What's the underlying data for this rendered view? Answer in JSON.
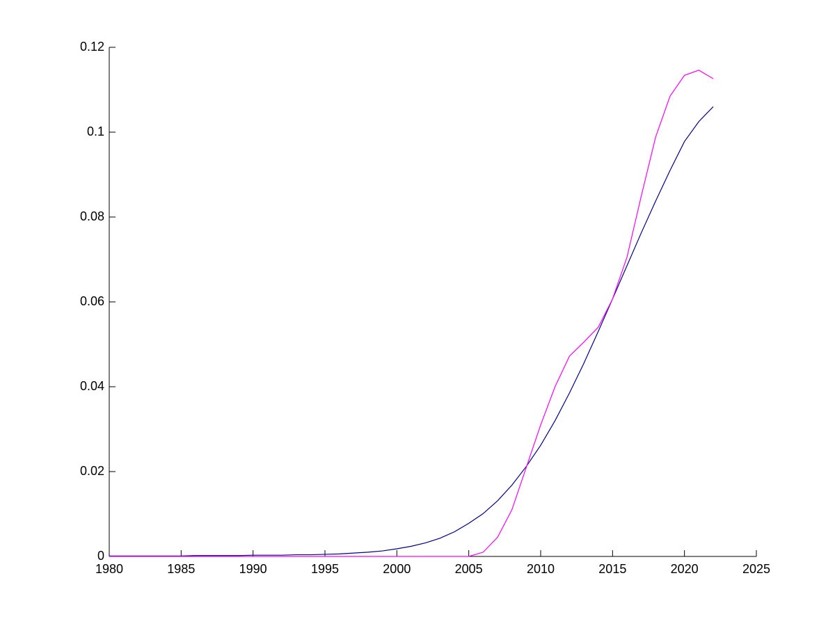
{
  "chart_data": {
    "type": "line",
    "x": [
      1980,
      1981,
      1982,
      1983,
      1984,
      1985,
      1986,
      1987,
      1988,
      1989,
      1990,
      1991,
      1992,
      1993,
      1994,
      1995,
      1996,
      1997,
      1998,
      1999,
      2000,
      2001,
      2002,
      2003,
      2004,
      2005,
      2006,
      2007,
      2008,
      2009,
      2010,
      2011,
      2012,
      2013,
      2014,
      2015,
      2016,
      2017,
      2018,
      2019,
      2020,
      2021,
      2022
    ],
    "series": [
      {
        "color": "#00008b",
        "values": [
          0.0001,
          0.0001,
          0.0001,
          0.0001,
          0.0001,
          0.0001,
          0.0002,
          0.0002,
          0.0002,
          0.0002,
          0.0003,
          0.0003,
          0.0003,
          0.0004,
          0.0004,
          0.0005,
          0.0006,
          0.0008,
          0.001,
          0.0013,
          0.0018,
          0.0024,
          0.0032,
          0.0043,
          0.0058,
          0.0078,
          0.0101,
          0.0131,
          0.0168,
          0.0212,
          0.0262,
          0.032,
          0.0385,
          0.0455,
          0.053,
          0.0607,
          0.0685,
          0.0763,
          0.0838,
          0.091,
          0.0978,
          0.1025,
          0.106
        ]
      },
      {
        "color": "#ff00ff",
        "values": [
          0,
          0,
          0,
          0,
          0,
          0,
          0,
          0,
          0,
          0,
          0,
          0,
          0,
          0,
          0,
          0,
          0,
          0,
          0,
          0,
          0,
          0,
          0,
          0,
          0,
          0,
          0.001,
          0.0045,
          0.011,
          0.021,
          0.031,
          0.04,
          0.0472,
          0.0505,
          0.054,
          0.0607,
          0.0705,
          0.085,
          0.0989,
          0.1085,
          0.1134,
          0.1146,
          0.1126
        ]
      }
    ],
    "xlim": [
      1980,
      2025
    ],
    "xticks": [
      1980,
      1985,
      1990,
      1995,
      2000,
      2005,
      2010,
      2015,
      2020,
      2025
    ],
    "ylim": [
      0,
      0.12
    ],
    "yticks": [
      0,
      0.02,
      0.04,
      0.06,
      0.08,
      0.1,
      0.12
    ]
  }
}
